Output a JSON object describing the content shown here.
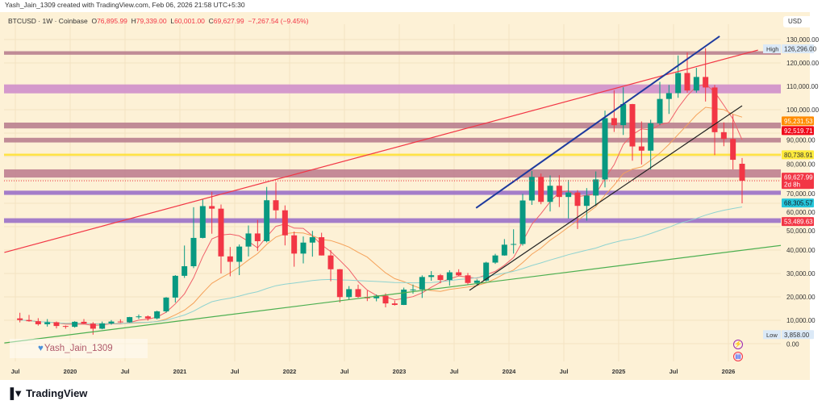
{
  "credit": "Yash_Jain_1309 created with TradingView.com, Feb 06, 2026 21:58 UTC+5:30",
  "legend": {
    "symbol": "BTCUSD · 1W · Coinbase",
    "open_label": "O",
    "open": "76,895.99",
    "high_label": "H",
    "high": "79,339.00",
    "low_label": "L",
    "low": "60,001.00",
    "close_label": "C",
    "close": "69,627.99",
    "change": "−7,267.54 (−9.45%)"
  },
  "currency": "USD",
  "watermark": "Yash_Jain_1309",
  "brand": "TradingView",
  "icons": [
    "heart-icon",
    "lightning-icon",
    "us-flag-icon",
    "tradingview-logo-icon"
  ],
  "chart_data": {
    "type": "candlestick",
    "interval_note": "1W",
    "y_scale": "linear",
    "ylim": [
      0,
      130000
    ],
    "y_ticks": [
      "130,000.00",
      "120,000.00",
      "110,000.00",
      "100,000.00",
      "90,000.00",
      "80,000.00",
      "70,000.00",
      "60,000.00",
      "50,000.00",
      "40,000.00",
      "30,000.00",
      "20,000.00",
      "10,000.00",
      "0.00"
    ],
    "y_tick_values": [
      130000,
      120000,
      110000,
      100000,
      90000,
      80000,
      70000,
      60000,
      50000,
      40000,
      30000,
      20000,
      10000,
      0
    ],
    "x_ticks": [
      {
        "label": "Jul",
        "date": 2019.5
      },
      {
        "label": "2020",
        "date": 2020.0
      },
      {
        "label": "Jul",
        "date": 2020.5
      },
      {
        "label": "2021",
        "date": 2021.0
      },
      {
        "label": "Jul",
        "date": 2021.5
      },
      {
        "label": "2022",
        "date": 2022.0
      },
      {
        "label": "Jul",
        "date": 2022.5
      },
      {
        "label": "2023",
        "date": 2023.0
      },
      {
        "label": "Jul",
        "date": 2023.5
      },
      {
        "label": "2024",
        "date": 2024.0
      },
      {
        "label": "Jul",
        "date": 2024.5
      },
      {
        "label": "2025",
        "date": 2025.0
      },
      {
        "label": "Jul",
        "date": 2025.5
      },
      {
        "label": "2026",
        "date": 2026.0
      }
    ],
    "grid": true,
    "start": "2019-07",
    "ohlc": [
      [
        10800,
        13200,
        9100,
        10100
      ],
      [
        10100,
        12300,
        9400,
        9600
      ],
      [
        9600,
        10900,
        7700,
        8300
      ],
      [
        8300,
        10500,
        7300,
        9150
      ],
      [
        9150,
        9500,
        6500,
        7550
      ],
      [
        7550,
        7750,
        6400,
        7200
      ],
      [
        7200,
        9600,
        6850,
        9350
      ],
      [
        9350,
        10500,
        8450,
        8550
      ],
      [
        8550,
        9200,
        3858,
        6400
      ],
      [
        6400,
        9450,
        6150,
        8650
      ],
      [
        8650,
        10080,
        8100,
        9450
      ],
      [
        9450,
        10400,
        8900,
        9150
      ],
      [
        9150,
        11450,
        8950,
        11350
      ],
      [
        11350,
        12470,
        10550,
        11650
      ],
      [
        11650,
        12050,
        9850,
        10800
      ],
      [
        10800,
        14100,
        10400,
        13800
      ],
      [
        13800,
        19900,
        13200,
        19700
      ],
      [
        19700,
        29300,
        17600,
        29000
      ],
      [
        29000,
        41950,
        28100,
        33100
      ],
      [
        33100,
        58300,
        32300,
        45200
      ],
      [
        45200,
        61800,
        45000,
        58800
      ],
      [
        58800,
        64900,
        47000,
        57700
      ],
      [
        57700,
        59500,
        30000,
        37300
      ],
      [
        37300,
        41300,
        28800,
        35000
      ],
      [
        35000,
        42400,
        29300,
        41500
      ],
      [
        41500,
        50500,
        37300,
        47100
      ],
      [
        47100,
        52900,
        39600,
        43800
      ],
      [
        43800,
        67000,
        43300,
        61300
      ],
      [
        61300,
        69000,
        53300,
        57000
      ],
      [
        57000,
        59100,
        42000,
        46300
      ],
      [
        46300,
        47900,
        32900,
        38500
      ],
      [
        38500,
        45800,
        34300,
        43200
      ],
      [
        43200,
        48200,
        37200,
        45500
      ],
      [
        45500,
        47400,
        37700,
        37700
      ],
      [
        37700,
        40000,
        26700,
        31800
      ],
      [
        31800,
        31900,
        17600,
        19900
      ],
      [
        19900,
        24600,
        18800,
        23300
      ],
      [
        23300,
        25200,
        19600,
        20000
      ],
      [
        20000,
        22700,
        18200,
        19400
      ],
      [
        19400,
        21000,
        18100,
        20500
      ],
      [
        20500,
        21500,
        15500,
        17200
      ],
      [
        17200,
        18400,
        16300,
        16550
      ],
      [
        16550,
        23950,
        16500,
        23100
      ],
      [
        23100,
        25250,
        21400,
        23150
      ],
      [
        23150,
        29200,
        19550,
        28500
      ],
      [
        28500,
        31000,
        26900,
        29250
      ],
      [
        29250,
        29800,
        25800,
        27200
      ],
      [
        27200,
        31400,
        24800,
        30500
      ],
      [
        30500,
        31800,
        28900,
        29200
      ],
      [
        29200,
        30200,
        25300,
        25950
      ],
      [
        25950,
        27500,
        24900,
        26950
      ],
      [
        26950,
        35000,
        26550,
        34650
      ],
      [
        34650,
        38400,
        34100,
        37700
      ],
      [
        37700,
        44700,
        37600,
        42300
      ],
      [
        42300,
        48900,
        38500,
        42600
      ],
      [
        42600,
        64000,
        41900,
        61200
      ],
      [
        61200,
        73800,
        59300,
        71300
      ],
      [
        71300,
        72700,
        59600,
        60600
      ],
      [
        60600,
        71900,
        56500,
        67500
      ],
      [
        67500,
        72000,
        58400,
        62700
      ],
      [
        62700,
        70000,
        53500,
        64600
      ],
      [
        64600,
        65600,
        49000,
        58900
      ],
      [
        58900,
        66500,
        52600,
        63300
      ],
      [
        63300,
        73600,
        58900,
        70200
      ],
      [
        70200,
        99600,
        66800,
        96400
      ],
      [
        96400,
        108300,
        90500,
        93400
      ],
      [
        93400,
        109600,
        89200,
        102400
      ],
      [
        102400,
        102500,
        78200,
        84300
      ],
      [
        84300,
        95000,
        76600,
        82500
      ],
      [
        82500,
        95700,
        74400,
        94200
      ],
      [
        94200,
        111900,
        93400,
        104600
      ],
      [
        104600,
        110600,
        98200,
        107100
      ],
      [
        107100,
        123200,
        105100,
        115700
      ],
      [
        115700,
        124500,
        107300,
        108200
      ],
      [
        108200,
        117900,
        107300,
        114000
      ],
      [
        114000,
        126296,
        103500,
        109500
      ],
      [
        109500,
        110600,
        80600,
        90400
      ],
      [
        90400,
        94600,
        84400,
        87500
      ],
      [
        87500,
        97900,
        74500,
        78600
      ],
      [
        76896,
        79339,
        60001,
        69628
      ]
    ],
    "zones": [
      {
        "from": 123500,
        "to": 125000,
        "color": "#b9808f"
      },
      {
        "from": 107000,
        "to": 110800,
        "color": "#cf8fcb"
      },
      {
        "from": 92000,
        "to": 94500,
        "color": "#b9808f"
      },
      {
        "from": 86000,
        "to": 88000,
        "color": "#b9808f"
      },
      {
        "from": 80300,
        "to": 81200,
        "color": "#ffe135"
      },
      {
        "from": 71000,
        "to": 74500,
        "color": "#bf8090"
      },
      {
        "from": 63600,
        "to": 65400,
        "color": "#9a70c8"
      },
      {
        "from": 51600,
        "to": 53600,
        "color": "#9a70c8"
      }
    ],
    "trendlines": [
      {
        "color": "#f23645",
        "p1": [
          2019.4,
          39000
        ],
        "p2": [
          2026.27,
          125500
        ]
      },
      {
        "color": "#1e3a9e",
        "p1": [
          2023.7,
          58000
        ],
        "p2": [
          2025.92,
          131400
        ]
      },
      {
        "color": "#222222",
        "p1": [
          2023.64,
          22800
        ],
        "p2": [
          2026.125,
          101700
        ]
      },
      {
        "color": "#4caf50",
        "p1": [
          2019.4,
          300
        ],
        "p2": [
          2026.48,
          42000
        ]
      }
    ],
    "moving_averages": [
      {
        "color": "#f0606a",
        "period_months": 5
      },
      {
        "color": "#f5a25a",
        "period_months": 12
      },
      {
        "color": "#8fd3d0",
        "period_months": 46
      }
    ],
    "price_labels": [
      {
        "text": "126,296.00",
        "prefix": "High",
        "value": 126296,
        "bg": "#dbe9f7",
        "fg": "#333333"
      },
      {
        "text": "95,231.53",
        "value": 95231.53,
        "bg": "#ff8c00",
        "fg": "#ffffff"
      },
      {
        "text": "92,519.71",
        "value": 92519.71,
        "bg": "#f00a1a",
        "fg": "#ffffff"
      },
      {
        "text": "80,738.91",
        "value": 80738.91,
        "bg": "#ffeb3b",
        "fg": "#333333"
      },
      {
        "text": "69,627.99",
        "sub": "2d 8h",
        "value": 69627.99,
        "bg": "#f23645",
        "fg": "#ffffff"
      },
      {
        "text": "68,305.57",
        "value": 68305.57,
        "bg": "#26c6da",
        "fg": "#131722"
      },
      {
        "text": "53,489.63",
        "value": 53489.63,
        "bg": "#f23645",
        "fg": "#ffffff"
      },
      {
        "text": "3,858.00",
        "prefix": "Low",
        "value": 3858,
        "bg": "#dbe9f7",
        "fg": "#333333"
      }
    ],
    "last_price": 69627.99,
    "colors": {
      "up": "#089981",
      "down": "#f23645",
      "background": "#fdf1d6",
      "grid": "#f4e3c2"
    }
  }
}
